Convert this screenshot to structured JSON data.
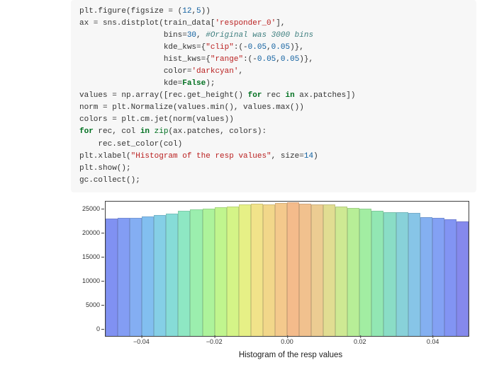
{
  "code": {
    "lines": [
      [
        [
          "plt.figure(figsize ",
          ""
        ],
        [
          "=",
          "op"
        ],
        [
          " (",
          ""
        ],
        [
          "12",
          "num"
        ],
        [
          ",",
          ""
        ],
        [
          "5",
          "num"
        ],
        [
          "))",
          ""
        ]
      ],
      [
        [
          "ax ",
          ""
        ],
        [
          "=",
          "op"
        ],
        [
          " sns.distplot(train_data[",
          ""
        ],
        [
          "'responder_0'",
          "str"
        ],
        [
          "],",
          ""
        ]
      ],
      [
        [
          "                  bins",
          ""
        ],
        [
          "=",
          "op"
        ],
        [
          "30",
          "num"
        ],
        [
          ", ",
          ""
        ],
        [
          "#Original was 3000 bins",
          "com"
        ]
      ],
      [
        [
          "                  kde_kws",
          ""
        ],
        [
          "=",
          "op"
        ],
        [
          "{",
          ""
        ],
        [
          "\"clip\"",
          "str"
        ],
        [
          ":(",
          ""
        ],
        [
          "-",
          "op"
        ],
        [
          "0.05",
          "num"
        ],
        [
          ",",
          ""
        ],
        [
          "0.05",
          "num"
        ],
        [
          ")},",
          ""
        ]
      ],
      [
        [
          "                  hist_kws",
          ""
        ],
        [
          "=",
          "op"
        ],
        [
          "{",
          ""
        ],
        [
          "\"range\"",
          "str"
        ],
        [
          ":(",
          ""
        ],
        [
          "-",
          "op"
        ],
        [
          "0.05",
          "num"
        ],
        [
          ",",
          ""
        ],
        [
          "0.05",
          "num"
        ],
        [
          ")},",
          ""
        ]
      ],
      [
        [
          "                  color",
          ""
        ],
        [
          "=",
          "op"
        ],
        [
          "'darkcyan'",
          "str"
        ],
        [
          ",",
          ""
        ]
      ],
      [
        [
          "                  kde",
          ""
        ],
        [
          "=",
          "op"
        ],
        [
          "False",
          "kw"
        ],
        [
          ");",
          ""
        ]
      ],
      [
        [
          "values ",
          ""
        ],
        [
          "=",
          "op"
        ],
        [
          " np.array([rec.get_height() ",
          ""
        ],
        [
          "for",
          "kw"
        ],
        [
          " rec ",
          ""
        ],
        [
          "in",
          "kw"
        ],
        [
          " ax.patches])",
          ""
        ]
      ],
      [
        [
          "norm ",
          ""
        ],
        [
          "=",
          "op"
        ],
        [
          " plt.Normalize(values.min(), values.max())",
          ""
        ]
      ],
      [
        [
          "colors ",
          ""
        ],
        [
          "=",
          "op"
        ],
        [
          " plt.cm.jet(norm(values))",
          ""
        ]
      ],
      [
        [
          "for",
          "kw"
        ],
        [
          " rec, col ",
          ""
        ],
        [
          "in",
          "kw"
        ],
        [
          " ",
          ""
        ],
        [
          "zip",
          "builtin"
        ],
        [
          "(ax.patches, colors):",
          ""
        ]
      ],
      [
        [
          "    rec.set_color(col)",
          ""
        ]
      ],
      [
        [
          "plt.xlabel(",
          ""
        ],
        [
          "\"Histogram of the resp values\"",
          "str"
        ],
        [
          ", size",
          ""
        ],
        [
          "=",
          "op"
        ],
        [
          "14",
          "num"
        ],
        [
          ")",
          ""
        ]
      ],
      [
        [
          "plt.show();",
          ""
        ]
      ],
      [
        [
          "gc.collect();",
          ""
        ]
      ]
    ]
  },
  "chart": {
    "type": "histogram",
    "xlabel": "Histogram of the resp values",
    "xlabel_fontsize": 14,
    "background_color": "#ffffff",
    "frame_color": "#404040",
    "bar_opacity": 0.85,
    "xlim": [
      -0.05,
      0.05
    ],
    "ylim": [
      0,
      28000
    ],
    "y_ticks": [
      0,
      5000,
      10000,
      15000,
      20000,
      25000
    ],
    "x_ticks": [
      -0.04,
      -0.02,
      0.0,
      0.02,
      0.04
    ],
    "x_tick_labels": [
      "−0.04",
      "−0.02",
      "0.00",
      "0.02",
      "0.04"
    ],
    "bins": 30,
    "values": [
      24400,
      24500,
      24600,
      24800,
      25200,
      25400,
      26000,
      26300,
      26500,
      26800,
      27000,
      27300,
      27500,
      27400,
      27700,
      27800,
      27500,
      27400,
      27300,
      27000,
      26700,
      26500,
      26000,
      25800,
      25700,
      25600,
      24700,
      24500,
      24300,
      23800
    ],
    "bar_colors": [
      "#6a7ef0",
      "#6e8df3",
      "#6fa0f2",
      "#6db4ee",
      "#70c7e2",
      "#72d7d1",
      "#7be3b9",
      "#8aeca0",
      "#9ff18a",
      "#b6f47b",
      "#cdf373",
      "#e2ee72",
      "#efdf76",
      "#f0d176",
      "#f3c078",
      "#f3b077",
      "#efb77b",
      "#e9c47f",
      "#dcd880",
      "#c6e681",
      "#abec86",
      "#92ea92",
      "#7fe3a6",
      "#76d8bd",
      "#74cad3",
      "#73bbe3",
      "#6fa3ef",
      "#6e91f3",
      "#6d82f1",
      "#7075e9"
    ]
  }
}
